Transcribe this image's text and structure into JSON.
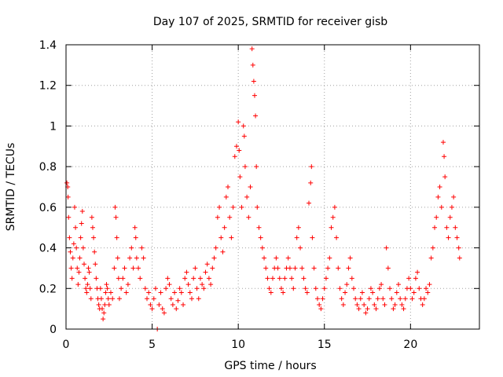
{
  "chart_data": {
    "type": "scatter",
    "title": "Day 107 of 2025, SRMTID for receiver gisb",
    "xlabel": "GPS time / hours",
    "ylabel": "SRMTID / TECUs",
    "xlim": [
      0,
      24
    ],
    "ylim": [
      0,
      1.4
    ],
    "xticks": [
      0,
      5,
      10,
      15,
      20
    ],
    "xtick_labels": [
      "0",
      "5",
      "10",
      "15",
      "20"
    ],
    "yticks": [
      0,
      0.2,
      0.4,
      0.6,
      0.8,
      1,
      1.2,
      1.4
    ],
    "ytick_labels": [
      "0",
      "0.2",
      "0.4",
      "0.6",
      "0.8",
      "1",
      "1.2",
      "1.4"
    ],
    "grid": true,
    "marker": "+",
    "color": "#ff0000",
    "series": [
      {
        "name": "SRMTID",
        "points": [
          [
            0.05,
            0.72
          ],
          [
            0.1,
            0.7
          ],
          [
            0.12,
            0.65
          ],
          [
            0.15,
            0.55
          ],
          [
            0.2,
            0.45
          ],
          [
            0.25,
            0.38
          ],
          [
            0.3,
            0.3
          ],
          [
            0.35,
            0.25
          ],
          [
            0.4,
            0.35
          ],
          [
            0.45,
            0.42
          ],
          [
            0.5,
            0.6
          ],
          [
            0.55,
            0.5
          ],
          [
            0.6,
            0.4
          ],
          [
            0.65,
            0.3
          ],
          [
            0.7,
            0.22
          ],
          [
            0.75,
            0.28
          ],
          [
            0.8,
            0.35
          ],
          [
            0.85,
            0.45
          ],
          [
            0.9,
            0.52
          ],
          [
            0.95,
            0.58
          ],
          [
            1.0,
            0.4
          ],
          [
            1.05,
            0.32
          ],
          [
            1.1,
            0.25
          ],
          [
            1.15,
            0.2
          ],
          [
            1.2,
            0.18
          ],
          [
            1.25,
            0.22
          ],
          [
            1.3,
            0.3
          ],
          [
            1.35,
            0.28
          ],
          [
            1.4,
            0.2
          ],
          [
            1.45,
            0.15
          ],
          [
            1.5,
            0.55
          ],
          [
            1.55,
            0.5
          ],
          [
            1.6,
            0.45
          ],
          [
            1.65,
            0.38
          ],
          [
            1.7,
            0.32
          ],
          [
            1.75,
            0.25
          ],
          [
            1.8,
            0.2
          ],
          [
            1.85,
            0.15
          ],
          [
            1.9,
            0.12
          ],
          [
            1.95,
            0.1
          ],
          [
            2.0,
            0.2
          ],
          [
            2.05,
            0.15
          ],
          [
            2.1,
            0.1
          ],
          [
            2.15,
            0.05
          ],
          [
            2.2,
            0.08
          ],
          [
            2.25,
            0.12
          ],
          [
            2.3,
            0.18
          ],
          [
            2.35,
            0.22
          ],
          [
            2.4,
            0.2
          ],
          [
            2.45,
            0.15
          ],
          [
            2.5,
            0.12
          ],
          [
            2.6,
            0.18
          ],
          [
            2.7,
            0.15
          ],
          [
            2.8,
            0.3
          ],
          [
            2.85,
            0.6
          ],
          [
            2.9,
            0.55
          ],
          [
            2.95,
            0.45
          ],
          [
            3.0,
            0.35
          ],
          [
            3.05,
            0.25
          ],
          [
            3.1,
            0.15
          ],
          [
            3.2,
            0.2
          ],
          [
            3.3,
            0.25
          ],
          [
            3.4,
            0.3
          ],
          [
            3.5,
            0.18
          ],
          [
            3.6,
            0.22
          ],
          [
            3.7,
            0.35
          ],
          [
            3.8,
            0.4
          ],
          [
            3.9,
            0.3
          ],
          [
            4.0,
            0.5
          ],
          [
            4.05,
            0.45
          ],
          [
            4.1,
            0.35
          ],
          [
            4.2,
            0.3
          ],
          [
            4.3,
            0.25
          ],
          [
            4.4,
            0.4
          ],
          [
            4.5,
            0.35
          ],
          [
            4.6,
            0.2
          ],
          [
            4.7,
            0.15
          ],
          [
            4.8,
            0.18
          ],
          [
            4.9,
            0.12
          ],
          [
            5.0,
            0.1
          ],
          [
            5.1,
            0.15
          ],
          [
            5.2,
            0.2
          ],
          [
            5.3,
            0.0
          ],
          [
            5.4,
            0.12
          ],
          [
            5.5,
            0.18
          ],
          [
            5.6,
            0.1
          ],
          [
            5.7,
            0.08
          ],
          [
            5.8,
            0.2
          ],
          [
            5.9,
            0.25
          ],
          [
            6.0,
            0.22
          ],
          [
            6.1,
            0.15
          ],
          [
            6.2,
            0.12
          ],
          [
            6.3,
            0.18
          ],
          [
            6.4,
            0.1
          ],
          [
            6.5,
            0.14
          ],
          [
            6.6,
            0.2
          ],
          [
            6.7,
            0.18
          ],
          [
            6.8,
            0.12
          ],
          [
            6.9,
            0.25
          ],
          [
            7.0,
            0.28
          ],
          [
            7.1,
            0.22
          ],
          [
            7.2,
            0.18
          ],
          [
            7.3,
            0.15
          ],
          [
            7.4,
            0.25
          ],
          [
            7.5,
            0.3
          ],
          [
            7.6,
            0.2
          ],
          [
            7.7,
            0.15
          ],
          [
            7.8,
            0.25
          ],
          [
            7.9,
            0.22
          ],
          [
            8.0,
            0.2
          ],
          [
            8.1,
            0.28
          ],
          [
            8.2,
            0.32
          ],
          [
            8.3,
            0.25
          ],
          [
            8.4,
            0.22
          ],
          [
            8.5,
            0.3
          ],
          [
            8.6,
            0.35
          ],
          [
            8.7,
            0.4
          ],
          [
            8.8,
            0.55
          ],
          [
            8.9,
            0.6
          ],
          [
            9.0,
            0.45
          ],
          [
            9.1,
            0.38
          ],
          [
            9.2,
            0.5
          ],
          [
            9.3,
            0.65
          ],
          [
            9.4,
            0.7
          ],
          [
            9.5,
            0.55
          ],
          [
            9.6,
            0.45
          ],
          [
            9.7,
            0.6
          ],
          [
            9.8,
            0.85
          ],
          [
            9.9,
            0.9
          ],
          [
            10.0,
            1.02
          ],
          [
            10.05,
            0.88
          ],
          [
            10.1,
            0.75
          ],
          [
            10.2,
            0.6
          ],
          [
            10.3,
            1.0
          ],
          [
            10.35,
            0.95
          ],
          [
            10.4,
            0.8
          ],
          [
            10.5,
            0.65
          ],
          [
            10.6,
            0.55
          ],
          [
            10.7,
            0.7
          ],
          [
            10.8,
            1.38
          ],
          [
            10.85,
            1.3
          ],
          [
            10.9,
            1.22
          ],
          [
            10.95,
            1.15
          ],
          [
            11.0,
            1.05
          ],
          [
            11.05,
            0.8
          ],
          [
            11.1,
            0.6
          ],
          [
            11.2,
            0.5
          ],
          [
            11.3,
            0.45
          ],
          [
            11.4,
            0.4
          ],
          [
            11.5,
            0.35
          ],
          [
            11.6,
            0.3
          ],
          [
            11.7,
            0.25
          ],
          [
            11.8,
            0.2
          ],
          [
            11.9,
            0.18
          ],
          [
            12.0,
            0.25
          ],
          [
            12.1,
            0.3
          ],
          [
            12.2,
            0.35
          ],
          [
            12.3,
            0.3
          ],
          [
            12.4,
            0.25
          ],
          [
            12.5,
            0.2
          ],
          [
            12.6,
            0.18
          ],
          [
            12.7,
            0.25
          ],
          [
            12.8,
            0.3
          ],
          [
            12.9,
            0.35
          ],
          [
            13.0,
            0.3
          ],
          [
            13.1,
            0.25
          ],
          [
            13.2,
            0.2
          ],
          [
            13.3,
            0.3
          ],
          [
            13.4,
            0.45
          ],
          [
            13.5,
            0.5
          ],
          [
            13.6,
            0.4
          ],
          [
            13.7,
            0.3
          ],
          [
            13.8,
            0.25
          ],
          [
            13.9,
            0.2
          ],
          [
            14.0,
            0.18
          ],
          [
            14.1,
            0.62
          ],
          [
            14.2,
            0.72
          ],
          [
            14.25,
            0.8
          ],
          [
            14.3,
            0.45
          ],
          [
            14.4,
            0.3
          ],
          [
            14.5,
            0.2
          ],
          [
            14.6,
            0.15
          ],
          [
            14.7,
            0.12
          ],
          [
            14.8,
            0.1
          ],
          [
            14.9,
            0.15
          ],
          [
            15.0,
            0.2
          ],
          [
            15.1,
            0.25
          ],
          [
            15.2,
            0.3
          ],
          [
            15.3,
            0.35
          ],
          [
            15.4,
            0.5
          ],
          [
            15.5,
            0.55
          ],
          [
            15.6,
            0.6
          ],
          [
            15.7,
            0.45
          ],
          [
            15.8,
            0.3
          ],
          [
            15.9,
            0.2
          ],
          [
            16.0,
            0.15
          ],
          [
            16.1,
            0.12
          ],
          [
            16.2,
            0.18
          ],
          [
            16.3,
            0.22
          ],
          [
            16.4,
            0.3
          ],
          [
            16.5,
            0.35
          ],
          [
            16.6,
            0.25
          ],
          [
            16.7,
            0.2
          ],
          [
            16.8,
            0.15
          ],
          [
            16.9,
            0.12
          ],
          [
            17.0,
            0.1
          ],
          [
            17.1,
            0.15
          ],
          [
            17.2,
            0.18
          ],
          [
            17.3,
            0.12
          ],
          [
            17.4,
            0.08
          ],
          [
            17.5,
            0.1
          ],
          [
            17.6,
            0.15
          ],
          [
            17.7,
            0.2
          ],
          [
            17.8,
            0.18
          ],
          [
            17.9,
            0.12
          ],
          [
            18.0,
            0.1
          ],
          [
            18.1,
            0.15
          ],
          [
            18.2,
            0.2
          ],
          [
            18.3,
            0.22
          ],
          [
            18.4,
            0.15
          ],
          [
            18.5,
            0.12
          ],
          [
            18.6,
            0.4
          ],
          [
            18.7,
            0.3
          ],
          [
            18.8,
            0.2
          ],
          [
            18.9,
            0.15
          ],
          [
            19.0,
            0.1
          ],
          [
            19.1,
            0.12
          ],
          [
            19.2,
            0.18
          ],
          [
            19.3,
            0.22
          ],
          [
            19.4,
            0.15
          ],
          [
            19.5,
            0.12
          ],
          [
            19.6,
            0.1
          ],
          [
            19.7,
            0.15
          ],
          [
            19.8,
            0.2
          ],
          [
            19.9,
            0.25
          ],
          [
            20.0,
            0.2
          ],
          [
            20.1,
            0.15
          ],
          [
            20.2,
            0.18
          ],
          [
            20.3,
            0.25
          ],
          [
            20.4,
            0.28
          ],
          [
            20.5,
            0.2
          ],
          [
            20.6,
            0.15
          ],
          [
            20.7,
            0.12
          ],
          [
            20.8,
            0.15
          ],
          [
            20.9,
            0.2
          ],
          [
            21.0,
            0.18
          ],
          [
            21.1,
            0.22
          ],
          [
            21.2,
            0.35
          ],
          [
            21.3,
            0.4
          ],
          [
            21.4,
            0.5
          ],
          [
            21.5,
            0.55
          ],
          [
            21.6,
            0.65
          ],
          [
            21.7,
            0.7
          ],
          [
            21.8,
            0.6
          ],
          [
            21.9,
            0.92
          ],
          [
            21.95,
            0.85
          ],
          [
            22.0,
            0.75
          ],
          [
            22.1,
            0.5
          ],
          [
            22.2,
            0.45
          ],
          [
            22.3,
            0.55
          ],
          [
            22.4,
            0.6
          ],
          [
            22.5,
            0.65
          ],
          [
            22.6,
            0.5
          ],
          [
            22.7,
            0.45
          ],
          [
            22.8,
            0.4
          ],
          [
            22.85,
            0.35
          ]
        ]
      }
    ]
  }
}
